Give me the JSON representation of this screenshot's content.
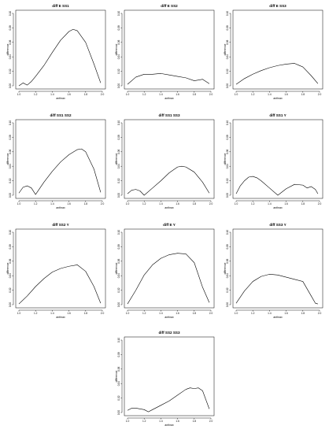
{
  "chart_data": [
    {
      "type": "line",
      "title": "diff E SS1",
      "xlabel": "anthrax",
      "ylabel": "difference",
      "xlim": [
        1.0,
        2.0
      ],
      "ylim": [
        0,
        0.1
      ],
      "xticks": [
        "1.0",
        "1.2",
        "1.4",
        "1.6",
        "1.8",
        "2.0"
      ],
      "yticks": [
        "0.00",
        "0.02",
        "0.04",
        "0.06",
        "0.08",
        "0.10"
      ],
      "series": [
        {
          "x": [
            1.0,
            1.05,
            1.1,
            1.15,
            1.2,
            1.3,
            1.4,
            1.5,
            1.6,
            1.65,
            1.7,
            1.8,
            1.9,
            1.98
          ],
          "y": [
            0.0,
            0.004,
            0.001,
            0.006,
            0.013,
            0.028,
            0.046,
            0.063,
            0.075,
            0.078,
            0.076,
            0.06,
            0.03,
            0.004
          ]
        }
      ]
    },
    {
      "type": "line",
      "title": "diff E SS2",
      "xlabel": "anthrax",
      "ylabel": "difference",
      "xlim": [
        1.0,
        2.0
      ],
      "ylim": [
        0,
        0.1
      ],
      "xticks": [
        "1.0",
        "1.2",
        "1.4",
        "1.6",
        "1.8",
        "2.0"
      ],
      "yticks": [
        "0.00",
        "0.02",
        "0.04",
        "0.06",
        "0.08",
        "0.10"
      ],
      "series": [
        {
          "x": [
            1.0,
            1.1,
            1.2,
            1.3,
            1.4,
            1.5,
            1.6,
            1.7,
            1.8,
            1.9,
            1.98
          ],
          "y": [
            0.002,
            0.012,
            0.016,
            0.016,
            0.017,
            0.015,
            0.013,
            0.011,
            0.007,
            0.009,
            0.003
          ]
        }
      ]
    },
    {
      "type": "line",
      "title": "diff E SS3",
      "xlabel": "anthrax",
      "ylabel": "difference",
      "xlim": [
        1.0,
        2.0
      ],
      "ylim": [
        0,
        0.1
      ],
      "xticks": [
        "1.0",
        "1.2",
        "1.4",
        "1.6",
        "1.8",
        "2.0"
      ],
      "yticks": [
        "0.00",
        "0.02",
        "0.04",
        "0.06",
        "0.08",
        "0.10"
      ],
      "series": [
        {
          "x": [
            1.0,
            1.1,
            1.2,
            1.3,
            1.4,
            1.5,
            1.6,
            1.7,
            1.8,
            1.9,
            1.98
          ],
          "y": [
            0.002,
            0.01,
            0.016,
            0.021,
            0.025,
            0.028,
            0.03,
            0.031,
            0.026,
            0.014,
            0.003
          ]
        }
      ]
    },
    {
      "type": "line",
      "title": "diff SS1 SS2",
      "xlabel": "anthrax",
      "ylabel": "difference",
      "xlim": [
        1.0,
        2.0
      ],
      "ylim": [
        0,
        0.1
      ],
      "xticks": [
        "1.0",
        "1.2",
        "1.4",
        "1.6",
        "1.8",
        "2.0"
      ],
      "yticks": [
        "0.00",
        "0.02",
        "0.04",
        "0.06",
        "0.08",
        "0.10"
      ],
      "series": [
        {
          "x": [
            1.0,
            1.05,
            1.1,
            1.15,
            1.2,
            1.3,
            1.4,
            1.5,
            1.6,
            1.7,
            1.75,
            1.8,
            1.9,
            1.98
          ],
          "y": [
            0.003,
            0.011,
            0.013,
            0.01,
            0.001,
            0.018,
            0.033,
            0.046,
            0.056,
            0.063,
            0.064,
            0.06,
            0.036,
            0.004
          ]
        }
      ]
    },
    {
      "type": "line",
      "title": "diff SS1 SS3",
      "xlabel": "anthrax",
      "ylabel": "difference",
      "xlim": [
        1.0,
        2.0
      ],
      "ylim": [
        0,
        0.1
      ],
      "xticks": [
        "1.0",
        "1.2",
        "1.4",
        "1.6",
        "1.8",
        "2.0"
      ],
      "yticks": [
        "0.00",
        "0.02",
        "0.04",
        "0.06",
        "0.08",
        "0.10"
      ],
      "series": [
        {
          "x": [
            1.0,
            1.05,
            1.1,
            1.15,
            1.2,
            1.3,
            1.4,
            1.5,
            1.6,
            1.65,
            1.7,
            1.8,
            1.9,
            1.98
          ],
          "y": [
            0.002,
            0.007,
            0.008,
            0.006,
            0.0,
            0.01,
            0.02,
            0.031,
            0.039,
            0.04,
            0.039,
            0.032,
            0.018,
            0.003
          ]
        }
      ]
    },
    {
      "type": "line",
      "title": "diff SS1 Y",
      "xlabel": "anthrax",
      "ylabel": "difference",
      "xlim": [
        1.0,
        2.0
      ],
      "ylim": [
        0,
        0.1
      ],
      "xticks": [
        "1.0",
        "1.2",
        "1.4",
        "1.6",
        "1.8",
        "2.0"
      ],
      "yticks": [
        "0.00",
        "0.02",
        "0.04",
        "0.06",
        "0.08",
        "0.10"
      ],
      "series": [
        {
          "x": [
            1.0,
            1.05,
            1.1,
            1.15,
            1.2,
            1.25,
            1.3,
            1.4,
            1.5,
            1.6,
            1.7,
            1.8,
            1.85,
            1.9,
            1.95,
            1.98
          ],
          "y": [
            0.002,
            0.013,
            0.02,
            0.025,
            0.026,
            0.024,
            0.02,
            0.01,
            0.0,
            0.009,
            0.015,
            0.014,
            0.01,
            0.012,
            0.008,
            0.002
          ]
        }
      ]
    },
    {
      "type": "line",
      "title": "diff SS2 Y",
      "xlabel": "anthrax",
      "ylabel": "difference",
      "xlim": [
        1.0,
        2.0
      ],
      "ylim": [
        0,
        0.1
      ],
      "xticks": [
        "1.0",
        "1.2",
        "1.4",
        "1.6",
        "1.8",
        "2.0"
      ],
      "yticks": [
        "0.00",
        "0.02",
        "0.04",
        "0.06",
        "0.08",
        "0.10"
      ],
      "series": [
        {
          "x": [
            1.0,
            1.1,
            1.2,
            1.3,
            1.4,
            1.5,
            1.6,
            1.7,
            1.8,
            1.9,
            1.98
          ],
          "y": [
            0.001,
            0.012,
            0.025,
            0.036,
            0.045,
            0.05,
            0.053,
            0.055,
            0.046,
            0.025,
            0.002
          ]
        }
      ]
    },
    {
      "type": "line",
      "title": "diff E Y",
      "xlabel": "anthrax",
      "ylabel": "difference",
      "xlim": [
        1.0,
        2.0
      ],
      "ylim": [
        0,
        0.1
      ],
      "xticks": [
        "1.0",
        "1.2",
        "1.4",
        "1.6",
        "1.8",
        "2.0"
      ],
      "yticks": [
        "0.00",
        "0.02",
        "0.04",
        "0.06",
        "0.08",
        "0.10"
      ],
      "series": [
        {
          "x": [
            1.0,
            1.1,
            1.2,
            1.3,
            1.4,
            1.5,
            1.6,
            1.7,
            1.8,
            1.9,
            1.98
          ],
          "y": [
            0.001,
            0.02,
            0.041,
            0.055,
            0.064,
            0.069,
            0.071,
            0.07,
            0.058,
            0.024,
            0.003
          ]
        }
      ]
    },
    {
      "type": "line",
      "title": "diff SS3 Y",
      "xlabel": "anthrax",
      "ylabel": "difference",
      "xlim": [
        1.0,
        2.0
      ],
      "ylim": [
        0,
        0.1
      ],
      "xticks": [
        "1.0",
        "1.2",
        "1.4",
        "1.6",
        "1.8",
        "2.0"
      ],
      "yticks": [
        "0.00",
        "0.02",
        "0.04",
        "0.06",
        "0.08",
        "0.10"
      ],
      "series": [
        {
          "x": [
            1.0,
            1.1,
            1.2,
            1.3,
            1.4,
            1.5,
            1.6,
            1.7,
            1.8,
            1.9,
            1.95,
            1.98
          ],
          "y": [
            0.002,
            0.019,
            0.032,
            0.039,
            0.042,
            0.041,
            0.038,
            0.035,
            0.032,
            0.012,
            0.002,
            0.001
          ]
        }
      ]
    },
    {
      "type": "line",
      "title": "diff SS2 SS3",
      "xlabel": "anthrax",
      "ylabel": "difference",
      "xlim": [
        1.0,
        2.0
      ],
      "ylim": [
        0,
        0.1
      ],
      "xticks": [
        "1.0",
        "1.2",
        "1.4",
        "1.6",
        "1.8",
        "2.0"
      ],
      "yticks": [
        "0.00",
        "0.02",
        "0.04",
        "0.06",
        "0.08",
        "0.10"
      ],
      "series": [
        {
          "x": [
            1.0,
            1.05,
            1.1,
            1.2,
            1.25,
            1.3,
            1.4,
            1.5,
            1.6,
            1.7,
            1.75,
            1.8,
            1.85,
            1.9,
            1.98
          ],
          "y": [
            0.003,
            0.006,
            0.006,
            0.004,
            0.001,
            0.004,
            0.01,
            0.016,
            0.024,
            0.032,
            0.034,
            0.033,
            0.034,
            0.03,
            0.005
          ]
        }
      ]
    }
  ]
}
